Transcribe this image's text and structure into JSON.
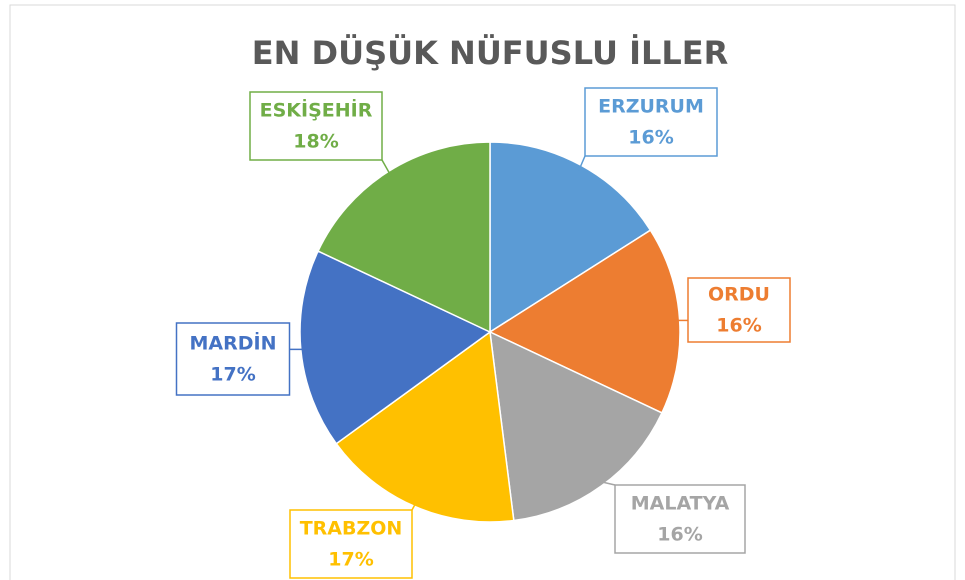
{
  "chart_data": {
    "type": "pie",
    "title": "EN DÜŞÜK NÜFUSLU İLLER",
    "categories": [
      "ERZURUM",
      "ORDU",
      "MALATYA",
      "TRABZON",
      "MARDİN",
      "ESKİŞEHİR"
    ],
    "values": [
      16,
      16,
      16,
      17,
      17,
      18
    ],
    "value_labels": [
      "16%",
      "16%",
      "16%",
      "17%",
      "17%",
      "18%"
    ],
    "colors": [
      "#5b9bd5",
      "#ed7d31",
      "#a5a5a5",
      "#ffc000",
      "#4472c4",
      "#70ad47"
    ]
  }
}
